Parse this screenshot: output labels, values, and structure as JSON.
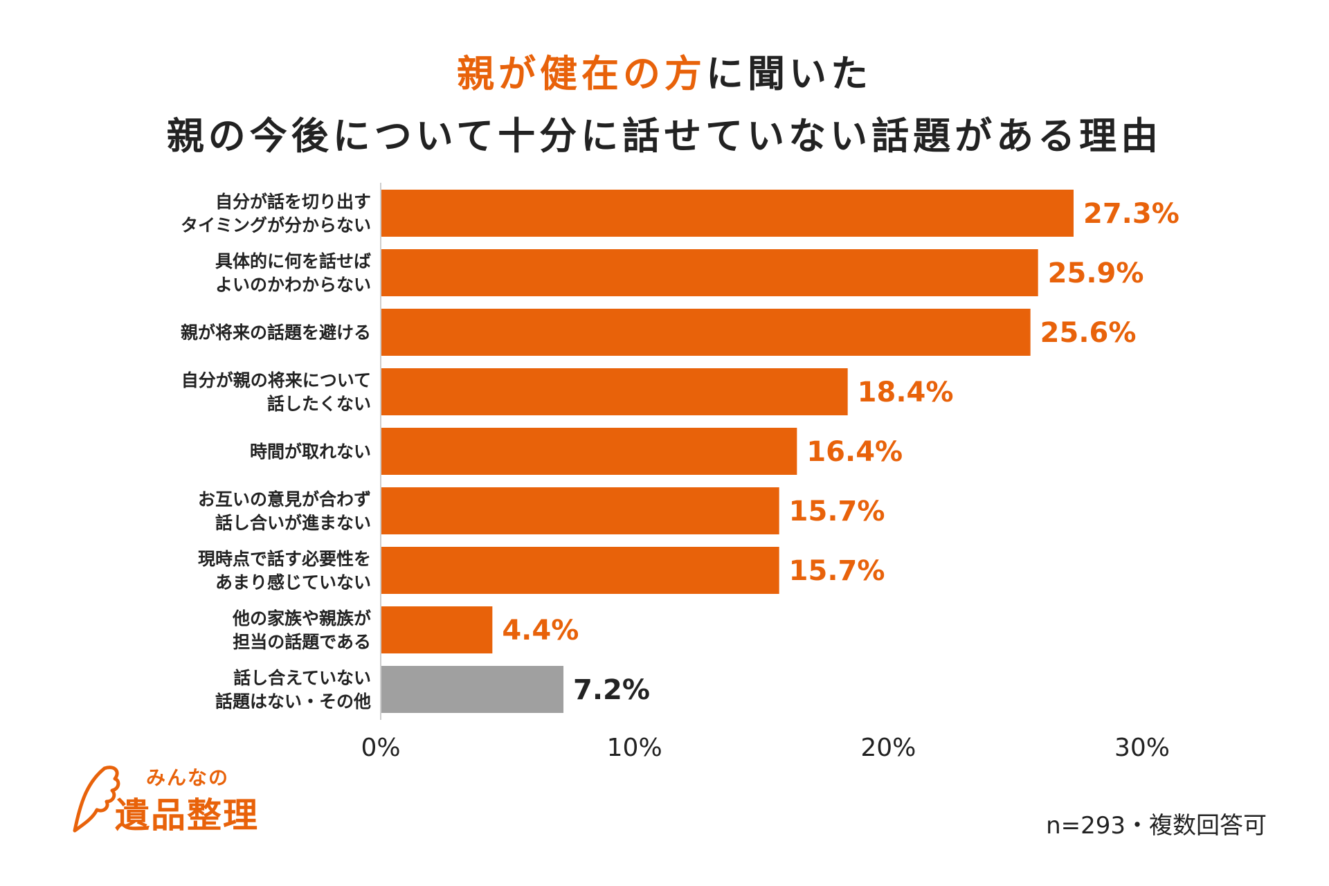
{
  "title": {
    "line1_accent_1": "親が健在の方",
    "line1_rest": "に聞いた",
    "line2": "親の今後について十分に話せていない話題がある理由"
  },
  "colors": {
    "accent": "#e8620a",
    "gray_bar": "#a0a0a0",
    "text": "#222222"
  },
  "chart_data": {
    "type": "bar",
    "orientation": "horizontal",
    "categories": [
      [
        "自分が話を切り出す",
        "タイミングが分からない"
      ],
      [
        "具体的に何を話せば",
        "よいのかわからない"
      ],
      [
        "親が将来の話題を避ける"
      ],
      [
        "自分が親の将来について",
        "話したくない"
      ],
      [
        "時間が取れない"
      ],
      [
        "お互いの意見が合わず",
        "話し合いが進まない"
      ],
      [
        "現時点で話す必要性を",
        "あまり感じていない"
      ],
      [
        "他の家族や親族が",
        "担当の話題である"
      ],
      [
        "話し合えていない",
        "話題はない・その他"
      ]
    ],
    "values": [
      27.3,
      25.9,
      25.6,
      18.4,
      16.4,
      15.7,
      15.7,
      4.4,
      7.2
    ],
    "value_labels": [
      "27.3%",
      "25.9%",
      "25.6%",
      "18.4%",
      "16.4%",
      "15.7%",
      "15.7%",
      "4.4%",
      "7.2%"
    ],
    "bar_colors": [
      "#e8620a",
      "#e8620a",
      "#e8620a",
      "#e8620a",
      "#e8620a",
      "#e8620a",
      "#e8620a",
      "#e8620a",
      "#a0a0a0"
    ],
    "label_colors": [
      "#e8620a",
      "#e8620a",
      "#e8620a",
      "#e8620a",
      "#e8620a",
      "#e8620a",
      "#e8620a",
      "#e8620a",
      "#222222"
    ],
    "xlim": [
      0,
      30
    ],
    "xticks": [
      0,
      10,
      20,
      30
    ],
    "xtick_labels": [
      "0%",
      "10%",
      "20%",
      "30%"
    ],
    "grid": false
  },
  "logo": {
    "small_text": "みんなの",
    "big_text": "遺品整理"
  },
  "note": "n=293・複数回答可"
}
